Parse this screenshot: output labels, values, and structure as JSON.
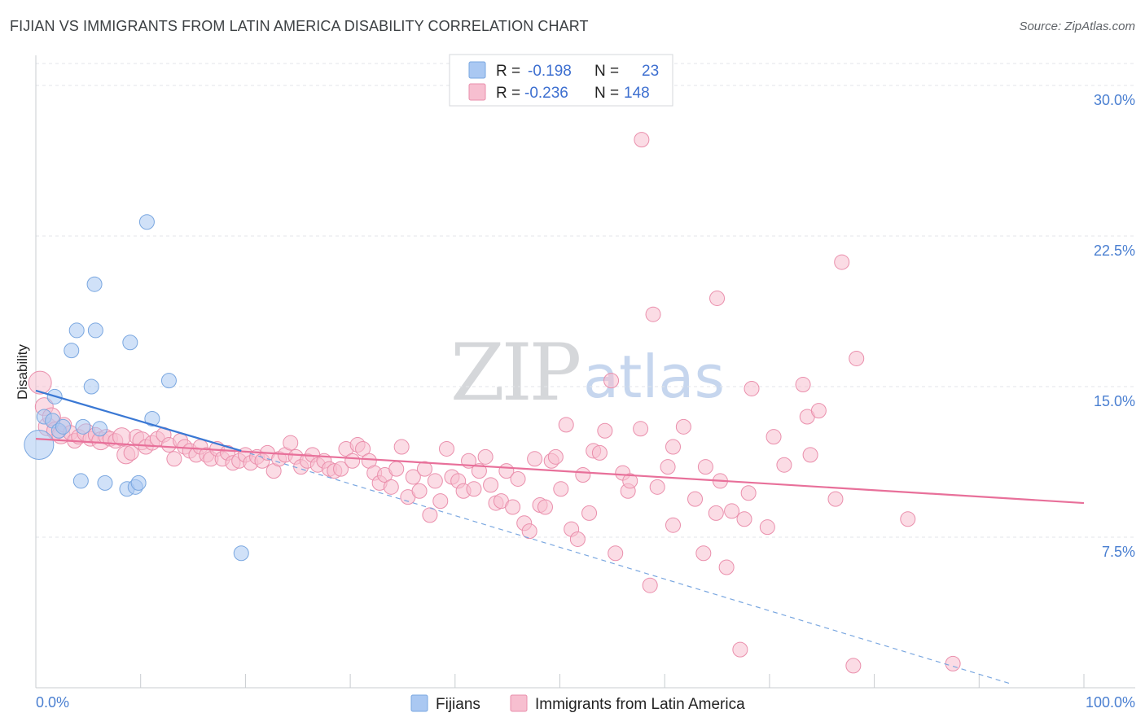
{
  "title": "FIJIAN VS IMMIGRANTS FROM LATIN AMERICA DISABILITY CORRELATION CHART",
  "source": "Source: ZipAtlas.com",
  "watermark": {
    "zip": "ZIP",
    "atlas": "atlas"
  },
  "legend_top": {
    "rows": [
      {
        "r_label": "R =",
        "r_value": "-0.198",
        "n_label": "N =",
        "n_value": "23",
        "color": "#aac8f2",
        "stroke": "#7aa7e0"
      },
      {
        "r_label": "R =",
        "r_value": "-0.236",
        "n_label": "N =",
        "n_value": "148",
        "color": "#f7bfd0",
        "stroke": "#ea8fac"
      }
    ]
  },
  "legend_bottom": [
    {
      "label": "Fijians",
      "color": "#aac8f2",
      "stroke": "#7aa7e0"
    },
    {
      "label": "Immigrants from Latin America",
      "color": "#f7bfd0",
      "stroke": "#ea8fac"
    }
  ],
  "chart_data": {
    "type": "scatter",
    "title": "FIJIAN VS IMMIGRANTS FROM LATIN AMERICA DISABILITY CORRELATION CHART",
    "xlabel": "",
    "ylabel": "Disability",
    "xlim": [
      0,
      100
    ],
    "ylim": [
      0,
      31.5
    ],
    "x_tick_labels": [
      "0.0%",
      "100.0%"
    ],
    "y_ticks": [
      7.5,
      15.0,
      22.5,
      30.0
    ],
    "y_tick_labels": [
      "7.5%",
      "15.0%",
      "22.5%",
      "30.0%"
    ],
    "grid": true,
    "legend_position": "top-center",
    "series": [
      {
        "name": "Fijians",
        "color": "#aac8f2",
        "stroke": "#7aa7e0",
        "points": [
          [
            0.3,
            12.1,
            18
          ],
          [
            0.8,
            13.5,
            9
          ],
          [
            1.6,
            13.3,
            9
          ],
          [
            1.8,
            14.5,
            9
          ],
          [
            2.2,
            12.8,
            9
          ],
          [
            2.6,
            13.0,
            9
          ],
          [
            3.4,
            16.8,
            9
          ],
          [
            3.9,
            17.8,
            9
          ],
          [
            4.3,
            10.3,
            9
          ],
          [
            4.5,
            13.0,
            9
          ],
          [
            5.3,
            15.0,
            9
          ],
          [
            5.7,
            17.8,
            9
          ],
          [
            5.6,
            20.1,
            9
          ],
          [
            6.1,
            12.9,
            9
          ],
          [
            6.6,
            10.2,
            9
          ],
          [
            8.7,
            9.9,
            9
          ],
          [
            9.0,
            17.2,
            9
          ],
          [
            9.5,
            10.0,
            9
          ],
          [
            9.8,
            10.2,
            9
          ],
          [
            10.6,
            23.2,
            9
          ],
          [
            11.1,
            13.4,
            9
          ],
          [
            12.7,
            15.3,
            9
          ],
          [
            19.6,
            6.7,
            9
          ]
        ],
        "trend": {
          "x": [
            0,
            19.6
          ],
          "y": [
            14.8,
            11.8
          ]
        },
        "trend_extended": {
          "x": [
            19.6,
            93
          ],
          "y": [
            11.8,
            0.2
          ]
        }
      },
      {
        "name": "Immigrants from Latin America",
        "color": "#f7bfd0",
        "stroke": "#ea8fac",
        "points": [
          [
            0.4,
            15.2,
            14
          ],
          [
            0.8,
            14.0,
            11
          ],
          [
            1.1,
            13.0,
            11
          ],
          [
            1.5,
            13.5,
            11
          ],
          [
            1.9,
            12.8,
            11
          ],
          [
            2.4,
            12.6,
            11
          ],
          [
            2.7,
            13.1,
            9
          ],
          [
            3.3,
            12.7,
            9
          ],
          [
            3.7,
            12.3,
            9
          ],
          [
            4.1,
            12.5,
            9
          ],
          [
            4.8,
            12.7,
            11
          ],
          [
            5.2,
            12.4,
            9
          ],
          [
            5.7,
            12.6,
            9
          ],
          [
            6.2,
            12.3,
            11
          ],
          [
            6.7,
            12.5,
            9
          ],
          [
            7.1,
            12.4,
            9
          ],
          [
            7.6,
            12.3,
            9
          ],
          [
            8.2,
            12.5,
            11
          ],
          [
            8.6,
            11.6,
            11
          ],
          [
            9.1,
            11.7,
            9
          ],
          [
            9.6,
            12.5,
            9
          ],
          [
            10.1,
            12.3,
            11
          ],
          [
            10.5,
            12.0,
            9
          ],
          [
            11.1,
            12.2,
            9
          ],
          [
            11.6,
            12.4,
            9
          ],
          [
            12.2,
            12.6,
            9
          ],
          [
            12.7,
            12.1,
            9
          ],
          [
            13.2,
            11.4,
            9
          ],
          [
            13.8,
            12.3,
            9
          ],
          [
            14.2,
            12.0,
            9
          ],
          [
            14.7,
            11.8,
            9
          ],
          [
            15.3,
            11.6,
            9
          ],
          [
            15.7,
            12.0,
            9
          ],
          [
            16.3,
            11.6,
            9
          ],
          [
            16.7,
            11.4,
            9
          ],
          [
            17.3,
            11.9,
            9
          ],
          [
            17.8,
            11.4,
            9
          ],
          [
            18.3,
            11.7,
            9
          ],
          [
            18.8,
            11.2,
            9
          ],
          [
            19.4,
            11.3,
            9
          ],
          [
            20.0,
            11.6,
            9
          ],
          [
            20.5,
            11.2,
            9
          ],
          [
            21.1,
            11.5,
            9
          ],
          [
            21.6,
            11.3,
            9
          ],
          [
            22.1,
            11.7,
            9
          ],
          [
            22.7,
            10.8,
            9
          ],
          [
            23.2,
            11.4,
            9
          ],
          [
            23.8,
            11.6,
            9
          ],
          [
            24.3,
            12.2,
            9
          ],
          [
            24.8,
            11.5,
            9
          ],
          [
            25.3,
            11.0,
            9
          ],
          [
            25.9,
            11.3,
            9
          ],
          [
            26.4,
            11.6,
            9
          ],
          [
            26.9,
            11.1,
            9
          ],
          [
            27.5,
            11.3,
            9
          ],
          [
            28.0,
            10.9,
            9
          ],
          [
            28.5,
            10.8,
            9
          ],
          [
            29.1,
            10.9,
            9
          ],
          [
            29.6,
            11.9,
            9
          ],
          [
            30.2,
            11.3,
            9
          ],
          [
            30.7,
            12.1,
            9
          ],
          [
            31.2,
            11.9,
            9
          ],
          [
            31.8,
            11.3,
            9
          ],
          [
            32.3,
            10.7,
            9
          ],
          [
            32.8,
            10.2,
            9
          ],
          [
            33.3,
            10.6,
            9
          ],
          [
            33.9,
            10.0,
            9
          ],
          [
            34.4,
            10.9,
            9
          ],
          [
            34.9,
            12.0,
            9
          ],
          [
            35.5,
            9.5,
            9
          ],
          [
            36.0,
            10.5,
            9
          ],
          [
            36.6,
            9.8,
            9
          ],
          [
            37.1,
            10.9,
            9
          ],
          [
            37.6,
            8.6,
            9
          ],
          [
            38.1,
            10.3,
            9
          ],
          [
            38.6,
            9.3,
            9
          ],
          [
            39.2,
            11.9,
            9
          ],
          [
            39.7,
            10.5,
            9
          ],
          [
            40.3,
            10.3,
            9
          ],
          [
            40.8,
            9.8,
            9
          ],
          [
            41.3,
            11.3,
            9
          ],
          [
            41.8,
            9.9,
            9
          ],
          [
            42.3,
            10.8,
            9
          ],
          [
            42.9,
            11.5,
            9
          ],
          [
            43.4,
            10.1,
            9
          ],
          [
            43.9,
            9.2,
            9
          ],
          [
            44.4,
            9.3,
            9
          ],
          [
            44.9,
            10.8,
            9
          ],
          [
            45.5,
            9.0,
            9
          ],
          [
            46.0,
            10.4,
            9
          ],
          [
            46.6,
            8.2,
            9
          ],
          [
            47.1,
            7.8,
            9
          ],
          [
            47.6,
            11.4,
            9
          ],
          [
            48.1,
            9.1,
            9
          ],
          [
            48.6,
            9.0,
            9
          ],
          [
            49.2,
            11.3,
            9
          ],
          [
            49.6,
            11.5,
            9
          ],
          [
            50.1,
            9.9,
            9
          ],
          [
            50.6,
            13.1,
            9
          ],
          [
            51.1,
            7.9,
            9
          ],
          [
            51.7,
            7.4,
            9
          ],
          [
            52.2,
            10.6,
            9
          ],
          [
            52.8,
            8.7,
            9
          ],
          [
            53.2,
            11.8,
            9
          ],
          [
            53.8,
            11.7,
            9
          ],
          [
            54.3,
            12.8,
            9
          ],
          [
            54.9,
            15.3,
            9
          ],
          [
            55.3,
            6.7,
            9
          ],
          [
            56.0,
            10.7,
            9
          ],
          [
            56.5,
            9.8,
            9
          ],
          [
            56.7,
            10.3,
            9
          ],
          [
            57.7,
            12.9,
            9
          ],
          [
            57.8,
            27.3,
            9
          ],
          [
            58.6,
            5.1,
            9
          ],
          [
            58.9,
            18.6,
            9
          ],
          [
            59.3,
            10.0,
            9
          ],
          [
            60.3,
            11.0,
            9
          ],
          [
            60.8,
            8.1,
            9
          ],
          [
            60.8,
            12.0,
            9
          ],
          [
            61.8,
            13.0,
            9
          ],
          [
            62.9,
            9.4,
            9
          ],
          [
            63.7,
            6.7,
            9
          ],
          [
            63.9,
            11.0,
            9
          ],
          [
            64.9,
            8.7,
            9
          ],
          [
            65.3,
            10.3,
            9
          ],
          [
            65.0,
            19.4,
            9
          ],
          [
            65.9,
            6.0,
            9
          ],
          [
            66.4,
            8.8,
            9
          ],
          [
            67.2,
            1.9,
            9
          ],
          [
            67.6,
            8.4,
            9
          ],
          [
            68.0,
            9.7,
            9
          ],
          [
            68.3,
            14.9,
            9
          ],
          [
            69.8,
            8.0,
            9
          ],
          [
            70.4,
            12.5,
            9
          ],
          [
            71.4,
            11.1,
            9
          ],
          [
            73.2,
            15.1,
            9
          ],
          [
            73.6,
            13.5,
            9
          ],
          [
            73.9,
            11.6,
            9
          ],
          [
            74.7,
            13.8,
            9
          ],
          [
            76.3,
            9.4,
            9
          ],
          [
            76.9,
            21.2,
            9
          ],
          [
            78.0,
            1.1,
            9
          ],
          [
            78.3,
            16.4,
            9
          ],
          [
            83.2,
            8.4,
            9
          ],
          [
            87.5,
            1.2,
            9
          ]
        ],
        "trend": {
          "x": [
            0,
            100
          ],
          "y": [
            12.4,
            9.2
          ]
        }
      }
    ]
  }
}
